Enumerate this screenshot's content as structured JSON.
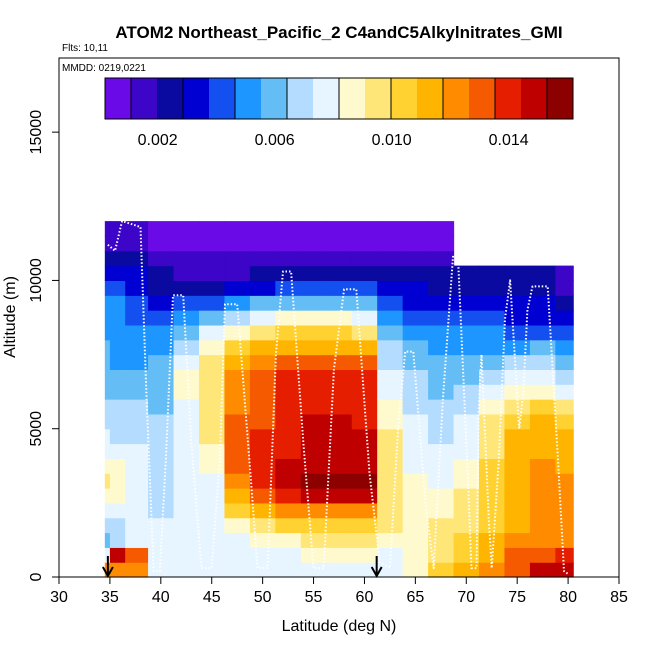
{
  "chart_data": {
    "type": "heatmap",
    "title": "ATOM2 Northeast_Pacific_2 C4andC5Alkylnitrates_GMI",
    "flights_label": "Flts: 10,11",
    "dates_label": "MMDD: 0219,0221",
    "xlabel": "Latitude (deg N)",
    "ylabel": "Altitude (m)",
    "xlim": [
      30,
      85
    ],
    "ylim": [
      0,
      17500
    ],
    "xticks": [
      "30",
      "35",
      "40",
      "45",
      "50",
      "55",
      "60",
      "65",
      "70",
      "75",
      "80",
      "85"
    ],
    "yticks": [
      "0",
      "5000",
      "10000",
      "15000"
    ],
    "colorbar": {
      "min": 0.0002,
      "max": 0.0162,
      "ticks": [
        "0.002",
        "0.006",
        "0.010",
        "0.014"
      ],
      "tick_values": [
        0.002,
        0.006,
        0.01,
        0.014
      ],
      "colors": [
        "#6a0ae6",
        "#3c05c8",
        "#0a0aa0",
        "#0000d2",
        "#1450f0",
        "#1e96ff",
        "#64bef5",
        "#b4dcff",
        "#e6f5ff",
        "#fffacd",
        "#ffe678",
        "#ffd232",
        "#ffb400",
        "#ff8c00",
        "#f55a00",
        "#e61e00",
        "#be0000",
        "#8c0000"
      ]
    },
    "arrows_lat": [
      34.8,
      61.2
    ],
    "heatmap_columns": [
      {
        "lat": 34.5,
        "bins": [
          [
            250,
            0.012
          ],
          [
            750,
            0.008
          ],
          [
            1250,
            0.006
          ],
          [
            2000,
            0.007
          ],
          [
            3000,
            0.0095
          ],
          [
            5000,
            0.007
          ],
          [
            7000,
            0.006
          ],
          [
            9000,
            0.005
          ],
          [
            10500,
            0.003
          ],
          [
            11500,
            0.0012
          ]
        ]
      },
      {
        "lat": 35.5,
        "bins": [
          [
            250,
            0.012
          ],
          [
            750,
            0.015
          ],
          [
            1250,
            0.007
          ],
          [
            2000,
            0.007
          ],
          [
            3000,
            0.009
          ],
          [
            5000,
            0.007
          ],
          [
            7000,
            0.0055
          ],
          [
            9000,
            0.005
          ],
          [
            10500,
            0.003
          ],
          [
            11500,
            0.0012
          ]
        ]
      },
      {
        "lat": 37.5,
        "bins": [
          [
            250,
            0.0125
          ],
          [
            750,
            0.013
          ],
          [
            1250,
            0.008
          ],
          [
            2000,
            0.0075
          ],
          [
            3000,
            0.008
          ],
          [
            5000,
            0.007
          ],
          [
            7000,
            0.0055
          ],
          [
            9000,
            0.0045
          ],
          [
            10500,
            0.003
          ],
          [
            11500,
            0.0012
          ]
        ]
      },
      {
        "lat": 40.0,
        "bins": [
          [
            250,
            0.0075
          ],
          [
            1500,
            0.0075
          ],
          [
            3000,
            0.007
          ],
          [
            5000,
            0.0065
          ],
          [
            7000,
            0.006
          ],
          [
            8500,
            0.0045
          ],
          [
            10000,
            0.0025
          ],
          [
            11200,
            0.001
          ]
        ]
      },
      {
        "lat": 42.5,
        "bins": [
          [
            250,
            0.0075
          ],
          [
            1500,
            0.0075
          ],
          [
            3000,
            0.0075
          ],
          [
            5000,
            0.008
          ],
          [
            7000,
            0.0085
          ],
          [
            8500,
            0.006
          ],
          [
            10000,
            0.002
          ],
          [
            11200,
            0.001
          ]
        ]
      },
      {
        "lat": 45.0,
        "bins": [
          [
            250,
            0.0075
          ],
          [
            1500,
            0.0075
          ],
          [
            3000,
            0.008
          ],
          [
            5000,
            0.0095
          ],
          [
            7000,
            0.01
          ],
          [
            8500,
            0.007
          ],
          [
            10000,
            0.002
          ],
          [
            11200,
            0.001
          ]
        ]
      },
      {
        "lat": 47.5,
        "bins": [
          [
            250,
            0.0075
          ],
          [
            1500,
            0.0075
          ],
          [
            3000,
            0.0125
          ],
          [
            5000,
            0.013
          ],
          [
            7000,
            0.012
          ],
          [
            8500,
            0.008
          ],
          [
            10000,
            0.002
          ],
          [
            11200,
            0.001
          ]
        ]
      },
      {
        "lat": 50.0,
        "bins": [
          [
            250,
            0.0075
          ],
          [
            1500,
            0.0085
          ],
          [
            3000,
            0.0145
          ],
          [
            5000,
            0.0135
          ],
          [
            7000,
            0.013
          ],
          [
            8500,
            0.009
          ],
          [
            10000,
            0.0025
          ],
          [
            11200,
            0.001
          ]
        ]
      },
      {
        "lat": 52.5,
        "bins": [
          [
            250,
            0.0075
          ],
          [
            1500,
            0.009
          ],
          [
            3000,
            0.015
          ],
          [
            5000,
            0.014
          ],
          [
            7000,
            0.0135
          ],
          [
            8500,
            0.0095
          ],
          [
            10000,
            0.003
          ],
          [
            11200,
            0.001
          ]
        ]
      },
      {
        "lat": 55.0,
        "bins": [
          [
            250,
            0.0075
          ],
          [
            1500,
            0.0095
          ],
          [
            3000,
            0.0155
          ],
          [
            5000,
            0.0145
          ],
          [
            7000,
            0.014
          ],
          [
            8500,
            0.0095
          ],
          [
            10000,
            0.003
          ],
          [
            11200,
            0.001
          ]
        ]
      },
      {
        "lat": 57.5,
        "bins": [
          [
            250,
            0.0075
          ],
          [
            1500,
            0.0095
          ],
          [
            3000,
            0.0155
          ],
          [
            5000,
            0.0145
          ],
          [
            7000,
            0.014
          ],
          [
            8500,
            0.0095
          ],
          [
            10000,
            0.003
          ],
          [
            11200,
            0.001
          ]
        ]
      },
      {
        "lat": 60.0,
        "bins": [
          [
            250,
            0.0075
          ],
          [
            1500,
            0.0095
          ],
          [
            3000,
            0.0155
          ],
          [
            5000,
            0.0145
          ],
          [
            7000,
            0.0135
          ],
          [
            8500,
            0.009
          ],
          [
            10000,
            0.003
          ],
          [
            11200,
            0.001
          ]
        ]
      },
      {
        "lat": 62.5,
        "bins": [
          [
            250,
            0.0075
          ],
          [
            1500,
            0.009
          ],
          [
            3000,
            0.01
          ],
          [
            5000,
            0.009
          ],
          [
            7000,
            0.0075
          ],
          [
            8500,
            0.006
          ],
          [
            10000,
            0.0025
          ],
          [
            11200,
            0.001
          ]
        ]
      },
      {
        "lat": 65.0,
        "bins": [
          [
            250,
            0.0085
          ],
          [
            1500,
            0.009
          ],
          [
            3000,
            0.0085
          ],
          [
            5000,
            0.0075
          ],
          [
            7000,
            0.0065
          ],
          [
            8500,
            0.005
          ],
          [
            10000,
            0.0025
          ],
          [
            11200,
            0.001
          ]
        ]
      },
      {
        "lat": 67.5,
        "bins": [
          [
            250,
            0.01
          ],
          [
            1500,
            0.0095
          ],
          [
            3000,
            0.008
          ],
          [
            5000,
            0.007
          ],
          [
            7000,
            0.006
          ],
          [
            8500,
            0.0045
          ],
          [
            10000,
            0.0025
          ],
          [
            11200,
            0.001
          ]
        ]
      },
      {
        "lat": 70.0,
        "bins": [
          [
            250,
            0.011
          ],
          [
            1500,
            0.01
          ],
          [
            3000,
            0.009
          ],
          [
            5000,
            0.0075
          ],
          [
            7000,
            0.006
          ],
          [
            8500,
            0.0045
          ],
          [
            10000,
            0.0025
          ]
        ]
      },
      {
        "lat": 72.5,
        "bins": [
          [
            250,
            0.0125
          ],
          [
            1500,
            0.0105
          ],
          [
            3000,
            0.0105
          ],
          [
            5000,
            0.0095
          ],
          [
            7000,
            0.0065
          ],
          [
            8500,
            0.0045
          ],
          [
            10000,
            0.002
          ]
        ]
      },
      {
        "lat": 75.0,
        "bins": [
          [
            250,
            0.0135
          ],
          [
            1500,
            0.0115
          ],
          [
            3000,
            0.011
          ],
          [
            5000,
            0.011
          ],
          [
            7000,
            0.007
          ],
          [
            8500,
            0.004
          ],
          [
            10000,
            0.002
          ]
        ]
      },
      {
        "lat": 77.5,
        "bins": [
          [
            250,
            0.0145
          ],
          [
            1500,
            0.012
          ],
          [
            3000,
            0.012
          ],
          [
            5000,
            0.0115
          ],
          [
            7000,
            0.0075
          ],
          [
            8500,
            0.004
          ],
          [
            10000,
            0.002
          ]
        ]
      },
      {
        "lat": 80.0,
        "bins": [
          [
            250,
            0.015
          ],
          [
            1500,
            0.012
          ],
          [
            3000,
            0.012
          ],
          [
            5000,
            0.011
          ],
          [
            7000,
            0.0065
          ],
          [
            8500,
            0.004
          ],
          [
            10000,
            0.0015
          ]
        ]
      }
    ],
    "flight_track": [
      [
        34.8,
        11200
      ],
      [
        35.5,
        11000
      ],
      [
        36.2,
        12000
      ],
      [
        38.0,
        11800
      ],
      [
        38.6,
        6000
      ],
      [
        39.3,
        200
      ],
      [
        39.9,
        200
      ],
      [
        40.5,
        4000
      ],
      [
        41.2,
        9500
      ],
      [
        42.2,
        9500
      ],
      [
        43.0,
        4500
      ],
      [
        44.0,
        300
      ],
      [
        45.0,
        300
      ],
      [
        45.8,
        4000
      ],
      [
        46.3,
        9200
      ],
      [
        47.5,
        9200
      ],
      [
        48.8,
        3500
      ],
      [
        49.5,
        300
      ],
      [
        50.5,
        300
      ],
      [
        51.3,
        7500
      ],
      [
        52.0,
        10300
      ],
      [
        52.8,
        10300
      ],
      [
        54.0,
        4500
      ],
      [
        55.0,
        300
      ],
      [
        56.0,
        300
      ],
      [
        57.0,
        7000
      ],
      [
        58.0,
        9700
      ],
      [
        59.2,
        9700
      ],
      [
        60.5,
        3500
      ],
      [
        61.5,
        500
      ],
      [
        62.5,
        300
      ],
      [
        63.3,
        5000
      ],
      [
        64.0,
        7600
      ],
      [
        64.8,
        7600
      ],
      [
        66.0,
        2500
      ],
      [
        66.8,
        300
      ],
      [
        67.7,
        6000
      ],
      [
        68.7,
        10800
      ],
      [
        69.2,
        10700
      ],
      [
        70.2,
        3000
      ],
      [
        70.5,
        300
      ],
      [
        71.0,
        300
      ],
      [
        71.2,
        5500
      ],
      [
        71.5,
        7500
      ],
      [
        72.2,
        2000
      ],
      [
        72.5,
        300
      ],
      [
        73.2,
        4000
      ],
      [
        73.8,
        8700
      ],
      [
        74.3,
        10000
      ],
      [
        75.2,
        5000
      ],
      [
        75.6,
        6200
      ],
      [
        76.0,
        9000
      ],
      [
        76.5,
        9800
      ],
      [
        78.0,
        9800
      ],
      [
        79.0,
        4000
      ],
      [
        79.6,
        200
      ],
      [
        80.0,
        100
      ]
    ]
  }
}
